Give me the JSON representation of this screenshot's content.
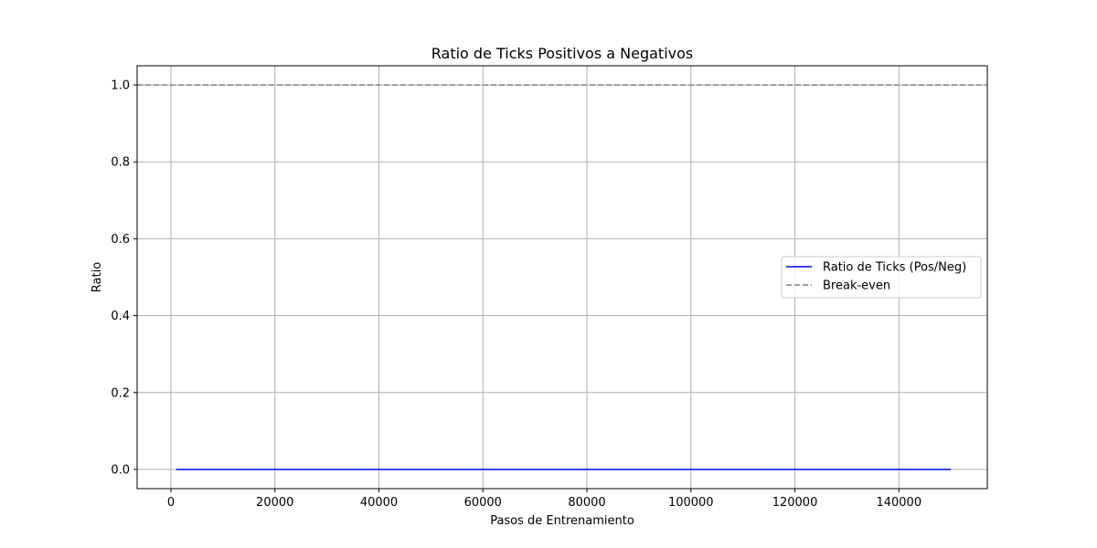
{
  "chart_data": {
    "type": "line",
    "title": "Ratio de Ticks Positivos a Negativos",
    "xlabel": "Pasos de Entrenamiento",
    "ylabel": "Ratio",
    "xlim": [
      -6500,
      157000
    ],
    "ylim": [
      -0.05,
      1.05
    ],
    "xticks": [
      0,
      20000,
      40000,
      60000,
      80000,
      100000,
      120000,
      140000
    ],
    "xtick_labels": [
      "0",
      "20000",
      "40000",
      "60000",
      "80000",
      "100000",
      "120000",
      "140000"
    ],
    "yticks": [
      0.0,
      0.2,
      0.4,
      0.6,
      0.8,
      1.0
    ],
    "ytick_labels": [
      "0.0",
      "0.2",
      "0.4",
      "0.6",
      "0.8",
      "1.0"
    ],
    "grid": true,
    "legend_position": "center-right",
    "series": [
      {
        "name": "Ratio de Ticks (Pos/Neg)",
        "color": "#0000ff",
        "style": "solid",
        "x": [
          1000,
          150000
        ],
        "y": [
          0.0,
          0.0
        ]
      }
    ],
    "reference_lines": [
      {
        "name": "Break-even",
        "orientation": "horizontal",
        "y": 1.0,
        "color": "#808080",
        "style": "dashed"
      }
    ]
  }
}
